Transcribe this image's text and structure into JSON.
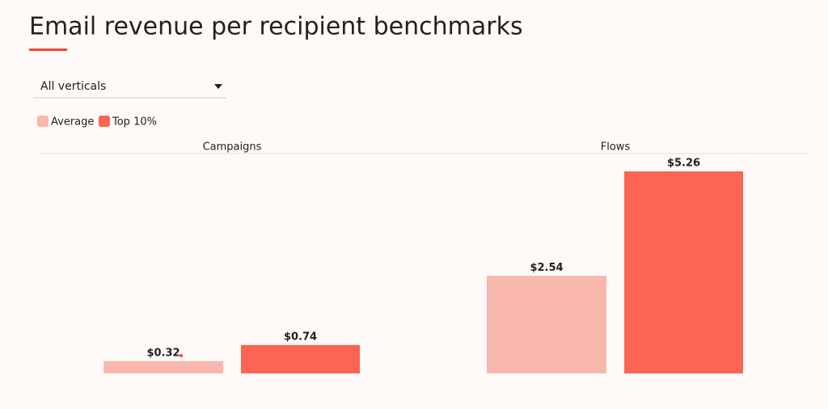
{
  "filter": {
    "label": "All verticals"
  },
  "chart_data": {
    "type": "bar",
    "title": "Email revenue per recipient benchmarks",
    "categories": [
      "Campaigns",
      "Flows"
    ],
    "series": [
      {
        "name": "Average",
        "color": "#f9b8ae",
        "values": [
          0.32,
          2.54
        ],
        "value_labels": [
          "$0.32",
          "$2.54"
        ]
      },
      {
        "name": "Top 10%",
        "color": "#fc6454",
        "values": [
          0.74,
          5.26
        ],
        "value_labels": [
          "$0.74",
          "$5.26"
        ]
      }
    ]
  }
}
